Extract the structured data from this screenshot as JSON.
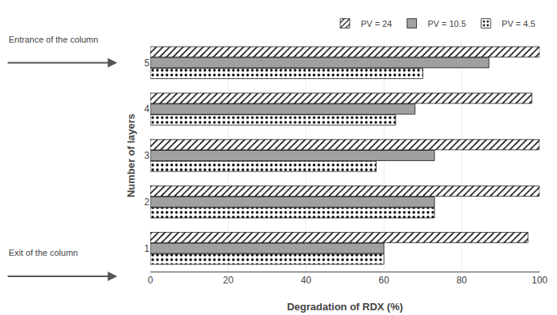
{
  "chart_data": {
    "type": "bar",
    "orientation": "horizontal",
    "categories": [
      1,
      2,
      3,
      4,
      5
    ],
    "series": [
      {
        "name": "PV = 24",
        "color": "#808080",
        "values": [
          97,
          100,
          100,
          98,
          100
        ]
      },
      {
        "name": "PV = 10.5",
        "color": "#a0a0a0",
        "values": [
          60,
          73,
          73,
          68,
          87
        ]
      },
      {
        "name": "PV = 4.5",
        "color": "#d8d8d8",
        "values": [
          60,
          73,
          58,
          63,
          70
        ]
      }
    ],
    "xlabel": "Degradation of RDX (%)",
    "ylabel": "Number of layers",
    "xlim": [
      0,
      100
    ],
    "xticks": [
      0,
      20,
      40,
      60,
      80,
      100
    ],
    "grid": true,
    "legend": "upper right",
    "annotations": [
      "Entrance of the column",
      "Exit of the column"
    ]
  }
}
